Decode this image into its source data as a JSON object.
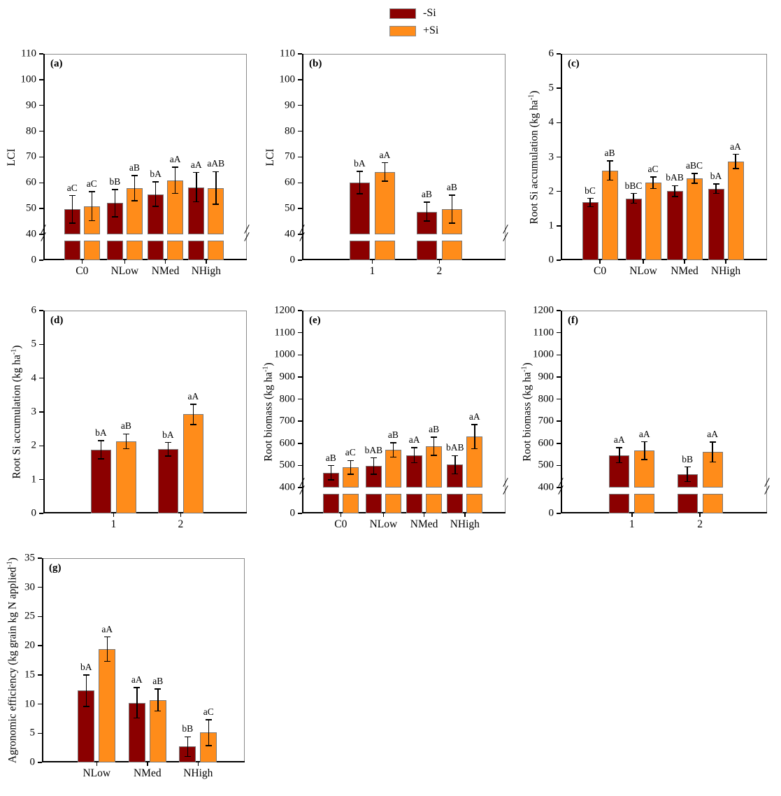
{
  "legend": {
    "items": [
      {
        "label": "-Si",
        "color": "#8B0000"
      },
      {
        "label": "+Si",
        "color": "#FF8C1A"
      }
    ]
  },
  "colors": {
    "minus_si": "#8B0000",
    "plus_si": "#FF8C1A",
    "bar_border": "#787878",
    "axis": "#000000",
    "frame": "#8a8a8a"
  },
  "chart_data": [
    {
      "id": "a",
      "letter": "(a)",
      "type": "bar",
      "ylabel": {
        "pre": "LCI",
        "sup": "",
        "post": ""
      },
      "xlabel": "",
      "ylim": [
        0,
        110
      ],
      "ybreak": 40,
      "broken": true,
      "yticks": [
        40,
        50,
        60,
        70,
        80,
        90,
        100,
        110
      ],
      "zero_label": "0",
      "categories": [
        "C0",
        "NLow",
        "NMed",
        "NHigh"
      ],
      "series": [
        {
          "name": "-Si",
          "values": [
            49.7,
            52.1,
            55.6,
            58.3
          ],
          "errors": [
            5.3,
            5.3,
            4.8,
            5.7
          ],
          "labels": [
            "aC",
            "bB",
            "bA",
            "aA"
          ]
        },
        {
          "name": "+Si",
          "values": [
            50.9,
            57.9,
            61.0,
            58.0
          ],
          "errors": [
            5.6,
            4.9,
            5.1,
            6.3
          ],
          "labels": [
            "aC",
            "aB",
            "aA",
            "aAB"
          ]
        }
      ]
    },
    {
      "id": "b",
      "letter": "(b)",
      "type": "bar",
      "ylabel": {
        "pre": "LCI",
        "sup": "",
        "post": ""
      },
      "xlabel": "",
      "ylim": [
        0,
        110
      ],
      "ybreak": 40,
      "broken": true,
      "yticks": [
        40,
        50,
        60,
        70,
        80,
        90,
        100,
        110
      ],
      "zero_label": "0",
      "categories": [
        "1",
        "2"
      ],
      "series": [
        {
          "name": "-Si",
          "values": [
            60.1,
            48.8
          ],
          "errors": [
            4.3,
            3.7
          ],
          "labels": [
            "bA",
            "aB"
          ]
        },
        {
          "name": "+Si",
          "values": [
            64.2,
            49.8
          ],
          "errors": [
            3.6,
            5.4
          ],
          "labels": [
            "aA",
            "aB"
          ]
        }
      ]
    },
    {
      "id": "c",
      "letter": "(c)",
      "type": "bar",
      "ylabel": {
        "pre": "Root Si accumulation (kg ha",
        "sup": "-1",
        "post": ")"
      },
      "xlabel": "",
      "ylim": [
        0,
        6
      ],
      "broken": false,
      "yticks": [
        0,
        1,
        2,
        3,
        4,
        5,
        6
      ],
      "categories": [
        "C0",
        "NLow",
        "NMed",
        "NHigh"
      ],
      "series": [
        {
          "name": "-Si",
          "values": [
            1.68,
            1.8,
            2.01,
            2.08
          ],
          "errors": [
            0.12,
            0.14,
            0.16,
            0.14
          ],
          "labels": [
            "bC",
            "bBC",
            "bAB",
            "bA"
          ]
        },
        {
          "name": "+Si",
          "values": [
            2.61,
            2.25,
            2.38,
            2.87
          ],
          "errors": [
            0.28,
            0.17,
            0.14,
            0.21
          ],
          "labels": [
            "aB",
            "aC",
            "aBC",
            "aA"
          ]
        }
      ]
    },
    {
      "id": "d",
      "letter": "(d)",
      "type": "bar",
      "ylabel": {
        "pre": "Root Si accumulation (kg ha",
        "sup": "-1",
        "post": ")"
      },
      "xlabel": "",
      "ylim": [
        0,
        6
      ],
      "broken": false,
      "yticks": [
        0,
        1,
        2,
        3,
        4,
        5,
        6
      ],
      "categories": [
        "1",
        "2"
      ],
      "series": [
        {
          "name": "-Si",
          "values": [
            1.88,
            1.9
          ],
          "errors": [
            0.27,
            0.2
          ],
          "labels": [
            "bA",
            "bA"
          ]
        },
        {
          "name": "+Si",
          "values": [
            2.13,
            2.93
          ],
          "errors": [
            0.22,
            0.3
          ],
          "labels": [
            "aB",
            "aA"
          ]
        }
      ]
    },
    {
      "id": "e",
      "letter": "(e)",
      "type": "bar",
      "ylabel": {
        "pre": "Root biomass (kg ha",
        "sup": "-1",
        "post": ")"
      },
      "xlabel": "",
      "ylim": [
        0,
        1200
      ],
      "ybreak": 400,
      "broken": true,
      "yticks": [
        400,
        500,
        600,
        700,
        800,
        900,
        1000,
        1100,
        1200
      ],
      "zero_label": "0",
      "categories": [
        "C0",
        "NLow",
        "NMed",
        "NHigh"
      ],
      "series": [
        {
          "name": "-Si",
          "values": [
            467,
            497,
            546,
            503
          ],
          "errors": [
            32,
            37,
            34,
            41
          ],
          "labels": [
            "aB",
            "bAB",
            "aA",
            "bAB"
          ]
        },
        {
          "name": "+Si",
          "values": [
            491,
            570,
            586,
            630
          ],
          "errors": [
            31,
            32,
            41,
            54
          ],
          "labels": [
            "aC",
            "aB",
            "aB",
            "aA"
          ]
        }
      ]
    },
    {
      "id": "f",
      "letter": "(f)",
      "type": "bar",
      "ylabel": {
        "pre": "Root biomass (kg ha",
        "sup": "-1",
        "post": ")"
      },
      "xlabel": "",
      "ylim": [
        0,
        1200
      ],
      "ybreak": 400,
      "broken": true,
      "yticks": [
        400,
        500,
        600,
        700,
        800,
        900,
        1000,
        1100,
        1200
      ],
      "zero_label": "0",
      "categories": [
        "1",
        "2"
      ],
      "series": [
        {
          "name": "-Si",
          "values": [
            547,
            460
          ],
          "errors": [
            34,
            33
          ],
          "labels": [
            "aA",
            "bB"
          ]
        },
        {
          "name": "+Si",
          "values": [
            567,
            561
          ],
          "errors": [
            40,
            45
          ],
          "labels": [
            "aA",
            "aA"
          ]
        }
      ]
    },
    {
      "id": "g",
      "letter": "(g)",
      "type": "bar",
      "ylabel": {
        "pre": "Agronomic efficiency (kg grain kg N applied",
        "sup": "-1",
        "post": ")"
      },
      "xlabel": "",
      "ylim": [
        0,
        35
      ],
      "broken": false,
      "yticks": [
        0,
        5,
        10,
        15,
        20,
        25,
        30,
        35
      ],
      "categories": [
        "NLow",
        "NMed",
        "NHigh"
      ],
      "series": [
        {
          "name": "-Si",
          "values": [
            12.3,
            10.2,
            2.7
          ],
          "errors": [
            2.7,
            2.6,
            1.7
          ],
          "labels": [
            "bA",
            "aA",
            "bB"
          ]
        },
        {
          "name": "+Si",
          "values": [
            19.4,
            10.7,
            5.1
          ],
          "errors": [
            2.1,
            1.9,
            2.2
          ],
          "labels": [
            "aA",
            "aB",
            "aC"
          ]
        }
      ]
    }
  ]
}
